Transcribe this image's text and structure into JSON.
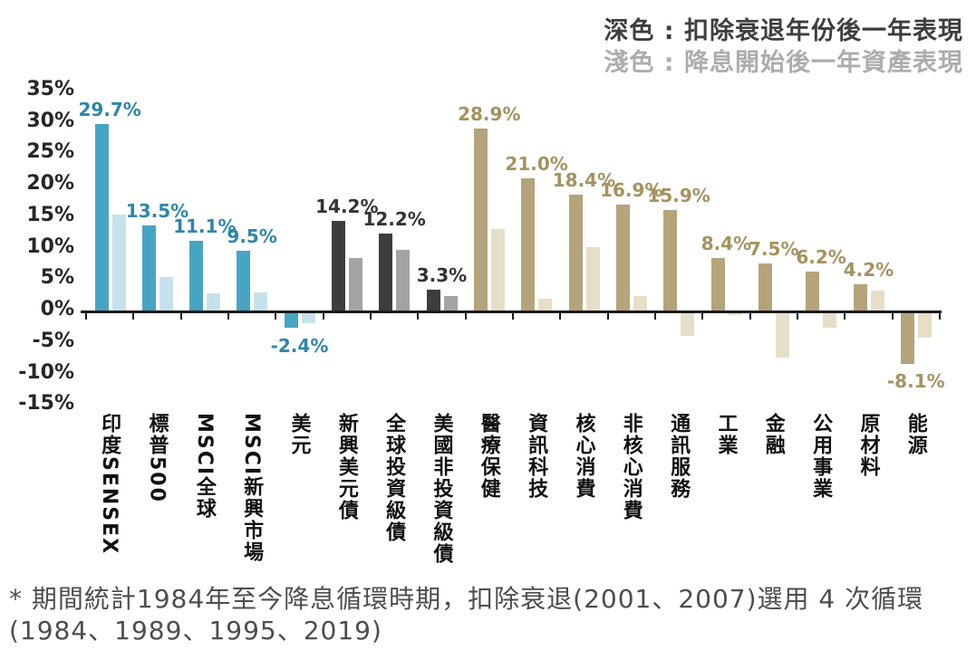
{
  "legend": {
    "dark_label": "深色 : 扣除衰退年份後一年表現",
    "light_label": "淺色 : 降息開始後一年資產表現"
  },
  "footnote": "* 期間統計1984年至今降息循環時期，扣除衰退(2001、2007)選用 4 次循環(1984、1989、1995、2019)",
  "chart_data": {
    "type": "bar",
    "title": "",
    "categories": [
      "印度SENSEX",
      "標普500",
      "MSCI全球",
      "MSCI新興市場",
      "美元",
      "新興美元債",
      "全球投資級債",
      "美國非投資級債",
      "醫療保健",
      "資訊科技",
      "核心消費",
      "非核心消費",
      "通訊服務",
      "工業",
      "金融",
      "公用事業",
      "原材料",
      "能源"
    ],
    "series": [
      {
        "name": "深色 : 扣除衰退年份後一年表現",
        "values": [
          29.7,
          13.5,
          11.1,
          9.5,
          -2.4,
          14.2,
          12.2,
          3.3,
          28.9,
          21.0,
          18.4,
          16.9,
          15.9,
          8.4,
          7.5,
          6.2,
          4.2,
          -8.1
        ]
      },
      {
        "name": "淺色 : 降息開始後一年資產表現",
        "values": [
          15.2,
          5.3,
          2.8,
          2.9,
          -1.6,
          8.4,
          9.7,
          2.3,
          13.0,
          1.8,
          10.1,
          2.3,
          -3.6,
          -0.3,
          -7.1,
          -2.4,
          3.1,
          -3.9
        ]
      }
    ],
    "value_labels": [
      "29.7%",
      "13.5%",
      "11.1%",
      "9.5%",
      "-2.4%",
      "14.2%",
      "12.2%",
      "3.3%",
      "28.9%",
      "21.0%",
      "18.4%",
      "16.9%",
      "15.9%",
      "8.4%",
      "7.5%",
      "6.2%",
      "4.2%",
      "-8.1%"
    ],
    "groups": [
      "teal",
      "teal",
      "teal",
      "teal",
      "teal",
      "gray",
      "gray",
      "gray",
      "tan",
      "tan",
      "tan",
      "tan",
      "tan",
      "tan",
      "tan",
      "tan",
      "tan",
      "tan"
    ],
    "ylim": [
      -15,
      35
    ],
    "ytick_step": 5,
    "ytick_labels": [
      "35%",
      "30%",
      "25%",
      "20%",
      "15%",
      "10%",
      "5%",
      "0%",
      "-5%",
      "-10%",
      "-15%"
    ],
    "grid": false,
    "legend_position": "top-right",
    "colors": {
      "teal_dark": "#47a5c3",
      "teal_light": "#c5e2ec",
      "gray_dark": "#3d3d3d",
      "gray_light": "#a3a3a3",
      "tan_dark": "#b5a37b",
      "tan_light": "#e7dec8",
      "teal_label": "#2e86a8",
      "gray_label": "#333333",
      "tan_label": "#a6925f"
    }
  }
}
